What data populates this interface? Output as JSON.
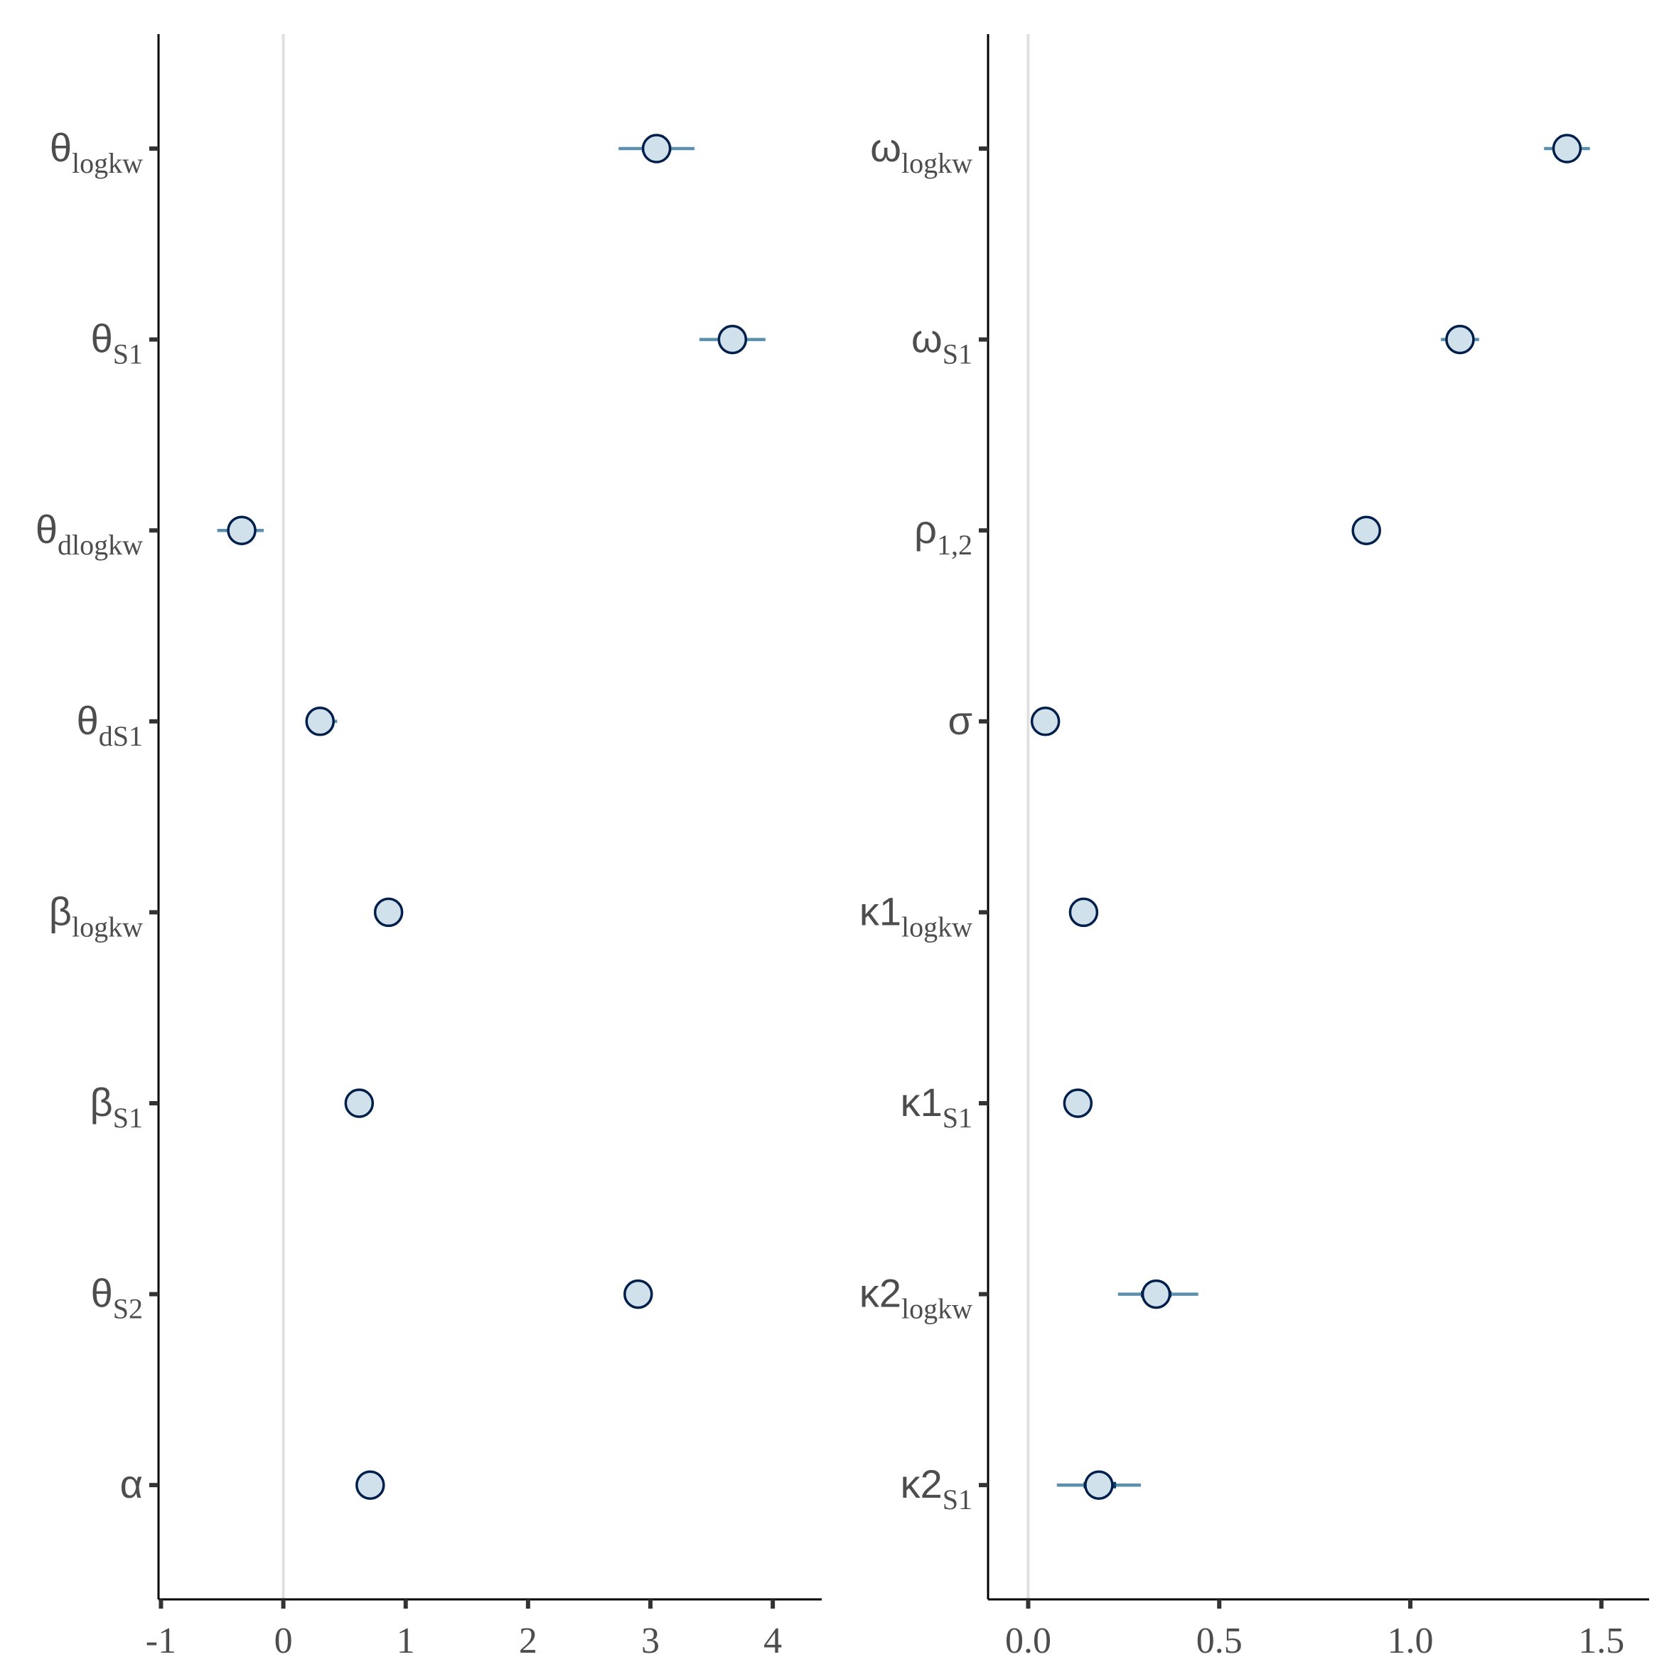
{
  "chart_data": [
    {
      "type": "scatter",
      "subtype": "interval-plot",
      "title": "",
      "xlabel": "",
      "ylabel": "",
      "xlim": [
        -1.02,
        4.4
      ],
      "x_ticks": [
        -1,
        0,
        1,
        2,
        3,
        4
      ],
      "x_tick_labels": [
        "-1",
        "0",
        "1",
        "2",
        "3",
        "4"
      ],
      "reference_line_x": 0,
      "grid": false,
      "params": [
        {
          "label": "θ",
          "sub": "logkw",
          "estimate": 3.05,
          "inner": [
            2.93,
            3.17
          ],
          "outer": [
            2.74,
            3.36
          ]
        },
        {
          "label": "θ",
          "sub": "S1",
          "estimate": 3.67,
          "inner": [
            3.58,
            3.76
          ],
          "outer": [
            3.4,
            3.94
          ]
        },
        {
          "label": "θ",
          "sub": "dlogkw",
          "estimate": -0.34,
          "inner": [
            -0.4,
            -0.28
          ],
          "outer": [
            -0.54,
            -0.16
          ]
        },
        {
          "label": "θ",
          "sub": "dS1",
          "estimate": 0.3,
          "inner": [
            0.25,
            0.35
          ],
          "outer": [
            0.18,
            0.44
          ]
        },
        {
          "label": "β",
          "sub": "logkw",
          "estimate": 0.86,
          "inner": [
            0.84,
            0.88
          ],
          "outer": [
            0.82,
            0.9
          ]
        },
        {
          "label": "β",
          "sub": "S1",
          "estimate": 0.62,
          "inner": [
            0.6,
            0.64
          ],
          "outer": [
            0.58,
            0.66
          ]
        },
        {
          "label": "θ",
          "sub": "S2",
          "estimate": 2.9,
          "inner": [
            2.88,
            2.92
          ],
          "outer": [
            2.86,
            2.94
          ]
        },
        {
          "label": "α",
          "sub": "",
          "estimate": 0.71,
          "inner": [
            0.69,
            0.73
          ],
          "outer": [
            0.67,
            0.75
          ]
        }
      ]
    },
    {
      "type": "scatter",
      "subtype": "interval-plot",
      "title": "",
      "xlabel": "",
      "ylabel": "",
      "xlim": [
        -0.105,
        1.625
      ],
      "x_ticks": [
        0.0,
        0.5,
        1.0,
        1.5
      ],
      "x_tick_labels": [
        "0.0",
        "0.5",
        "1.0",
        "1.5"
      ],
      "reference_line_x": 0,
      "grid": false,
      "params": [
        {
          "label": "ω",
          "sub": "logkw",
          "estimate": 1.41,
          "inner": [
            1.38,
            1.44
          ],
          "outer": [
            1.35,
            1.47
          ]
        },
        {
          "label": "ω",
          "sub": "S1",
          "estimate": 1.13,
          "inner": [
            1.11,
            1.15
          ],
          "outer": [
            1.08,
            1.18
          ]
        },
        {
          "label": "ρ",
          "sub": "1,2",
          "estimate": 0.885,
          "inner": [
            0.875,
            0.895
          ],
          "outer": [
            0.865,
            0.905
          ]
        },
        {
          "label": "σ",
          "sub": "",
          "estimate": 0.045,
          "inner": [
            0.04,
            0.05
          ],
          "outer": [
            0.035,
            0.055
          ]
        },
        {
          "label": "κ1",
          "sub": "logkw",
          "estimate": 0.145,
          "inner": [
            0.135,
            0.155
          ],
          "outer": [
            0.125,
            0.165
          ]
        },
        {
          "label": "κ1",
          "sub": "S1",
          "estimate": 0.13,
          "inner": [
            0.12,
            0.14
          ],
          "outer": [
            0.11,
            0.15
          ]
        },
        {
          "label": "κ2",
          "sub": "logkw",
          "estimate": 0.335,
          "inner": [
            0.295,
            0.375
          ],
          "outer": [
            0.235,
            0.445
          ]
        },
        {
          "label": "κ2",
          "sub": "S1",
          "estimate": 0.185,
          "inner": [
            0.145,
            0.23
          ],
          "outer": [
            0.075,
            0.295
          ]
        }
      ]
    }
  ]
}
